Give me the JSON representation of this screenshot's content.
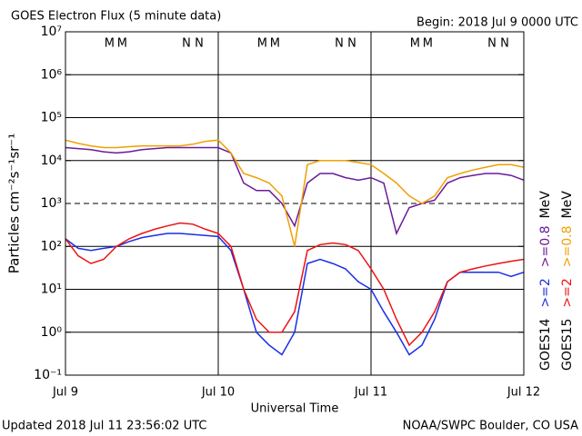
{
  "chart_data": {
    "type": "line",
    "title": "GOES Electron Flux (5 minute data)",
    "subtitle": "Begin: 2018 Jul 9 0000 UTC",
    "xlabel": "Universal Time",
    "ylabel": "Particles cm⁻²s⁻¹sr⁻¹",
    "footer_left": "Updated 2018 Jul 11 23:56:02 UTC",
    "footer_right": "NOAA/SWPC Boulder, CO USA",
    "log_scale": true,
    "grid": true,
    "dashed_line": 1000,
    "xlim": [
      0,
      72
    ],
    "xticks": [
      {
        "value": 0,
        "label": "Jul 9"
      },
      {
        "value": 24,
        "label": "Jul 10"
      },
      {
        "value": 48,
        "label": "Jul 11"
      },
      {
        "value": 72,
        "label": "Jul 12"
      }
    ],
    "ylim": [
      0.1,
      10000000
    ],
    "yticks": [
      {
        "value": 0.1,
        "label": "10⁻¹"
      },
      {
        "value": 1,
        "label": "10⁰"
      },
      {
        "value": 10,
        "label": "10¹"
      },
      {
        "value": 100,
        "label": "10²"
      },
      {
        "value": 1000,
        "label": "10³"
      },
      {
        "value": 10000,
        "label": "10⁴"
      },
      {
        "value": 100000,
        "label": "10⁵"
      },
      {
        "value": 1000000,
        "label": "10⁶"
      },
      {
        "value": 10000000,
        "label": "10⁷"
      }
    ],
    "legend_columns": [
      "GOES14",
      "GOES15"
    ],
    "unit": "MeV",
    "local_time_markers": [
      {
        "text": "M",
        "color": "#2233dd",
        "x": 6.9
      },
      {
        "text": "M",
        "color": "#dd2222",
        "x": 8.9
      },
      {
        "text": "N",
        "color": "#2233dd",
        "x": 19
      },
      {
        "text": "N",
        "color": "#dd2222",
        "x": 21
      },
      {
        "text": "M",
        "color": "#2233dd",
        "x": 30.9
      },
      {
        "text": "M",
        "color": "#dd2222",
        "x": 32.9
      },
      {
        "text": "N",
        "color": "#2233dd",
        "x": 43
      },
      {
        "text": "N",
        "color": "#dd2222",
        "x": 45
      },
      {
        "text": "M",
        "color": "#2233dd",
        "x": 54.9
      },
      {
        "text": "M",
        "color": "#dd2222",
        "x": 56.9
      },
      {
        "text": "N",
        "color": "#2233dd",
        "x": 67
      },
      {
        "text": "N",
        "color": "#dd2222",
        "x": 69
      }
    ],
    "x": [
      0,
      2,
      4,
      6,
      8,
      10,
      12,
      14,
      16,
      18,
      20,
      22,
      24,
      26,
      28,
      30,
      32,
      34,
      36,
      38,
      40,
      42,
      44,
      46,
      48,
      50,
      52,
      54,
      56,
      58,
      60,
      62,
      64,
      66,
      68,
      70,
      72
    ],
    "series": [
      {
        "name": ">=2",
        "color": "#1a2fe6",
        "values": [
          150,
          90,
          80,
          90,
          100,
          130,
          160,
          180,
          200,
          200,
          190,
          180,
          170,
          80,
          10,
          1,
          0.5,
          0.3,
          1,
          40,
          50,
          40,
          30,
          15,
          10,
          3,
          1,
          0.3,
          0.5,
          2,
          15,
          25,
          25,
          25,
          25,
          20,
          25
        ]
      },
      {
        "name": ">=0.8",
        "color": "#6a1a9a",
        "values": [
          20000,
          19000,
          18000,
          16000,
          15000,
          16000,
          18000,
          19000,
          20000,
          20000,
          20000,
          20000,
          20000,
          15000,
          3000,
          2000,
          2000,
          1000,
          300,
          3000,
          5000,
          5000,
          4000,
          3500,
          4000,
          3000,
          200,
          800,
          1000,
          1200,
          3000,
          4000,
          4500,
          5000,
          5000,
          4500,
          3500
        ]
      },
      {
        "name": ">=2",
        "color": "#ee1111",
        "values": [
          150,
          60,
          40,
          50,
          100,
          150,
          200,
          250,
          300,
          350,
          330,
          250,
          200,
          100,
          10,
          2,
          1,
          1,
          3,
          80,
          110,
          120,
          110,
          80,
          30,
          10,
          2,
          0.5,
          1,
          3,
          15,
          25,
          30,
          35,
          40,
          45,
          50
        ]
      },
      {
        "name": ">=0.8",
        "color": "#f0a000",
        "values": [
          30000,
          25000,
          22000,
          20000,
          20000,
          21000,
          22000,
          22000,
          22000,
          22000,
          24000,
          28000,
          30000,
          15000,
          5000,
          4000,
          3000,
          1500,
          100,
          8000,
          10000,
          10000,
          10000,
          9000,
          8000,
          5000,
          3000,
          1500,
          1000,
          1500,
          4000,
          5000,
          6000,
          7000,
          8000,
          8000,
          7000
        ]
      }
    ]
  }
}
